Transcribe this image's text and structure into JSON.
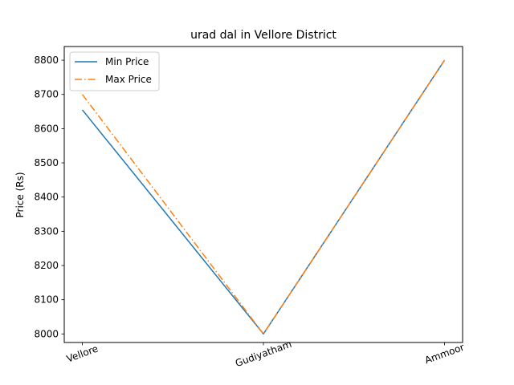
{
  "chart_data": {
    "type": "line",
    "title": "urad dal in Vellore District",
    "xlabel": "",
    "ylabel": "Price (Rs)",
    "categories": [
      "Vellore",
      "Gudiyatham",
      "Ammoor"
    ],
    "ylim": [
      7975,
      8840
    ],
    "yticks": [
      8000,
      8100,
      8200,
      8300,
      8400,
      8500,
      8600,
      8700,
      8800
    ],
    "grid": false,
    "legend": "top-left",
    "series": [
      {
        "name": "Min Price",
        "values": [
          8655,
          8000,
          8800
        ],
        "color": "#1f77b4",
        "style": "solid"
      },
      {
        "name": "Max Price",
        "values": [
          8700,
          8000,
          8800
        ],
        "color": "#ff7f0e",
        "style": "dashdot"
      }
    ]
  }
}
